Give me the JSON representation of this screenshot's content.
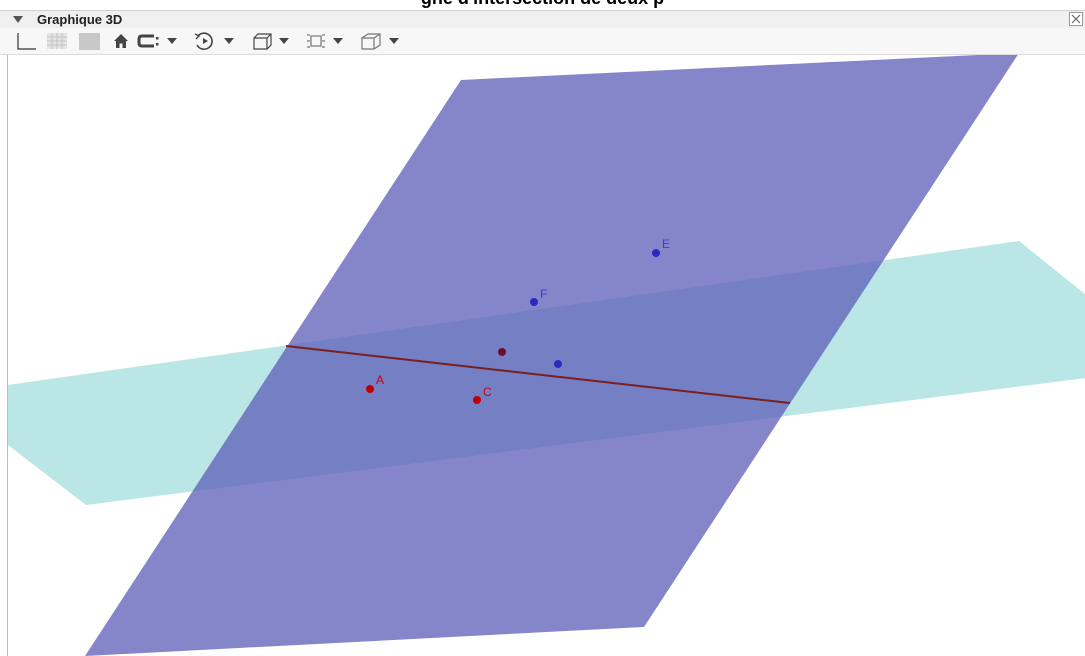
{
  "heading": "gne d'intersection de deux p",
  "panel": {
    "title": "Graphique 3D"
  },
  "toolbar": {
    "items": [
      "axes-toggle-icon",
      "grid-toggle-icon",
      "plane-toggle-icon",
      "home-icon",
      "clipping-icon",
      "rotate-icon",
      "view-box-icon",
      "projection-icon",
      "cube-view-icon"
    ]
  },
  "colors": {
    "plane_purple": "#5c5cb8",
    "plane_cyan": "#9fdcdc",
    "line": "#7a1f1f",
    "point_red": "#c00000",
    "point_blue": "#2a2ac0",
    "point_darkred": "#6b0f2a"
  },
  "points": {
    "A": "A",
    "C": "C",
    "E": "E",
    "F": "F"
  }
}
